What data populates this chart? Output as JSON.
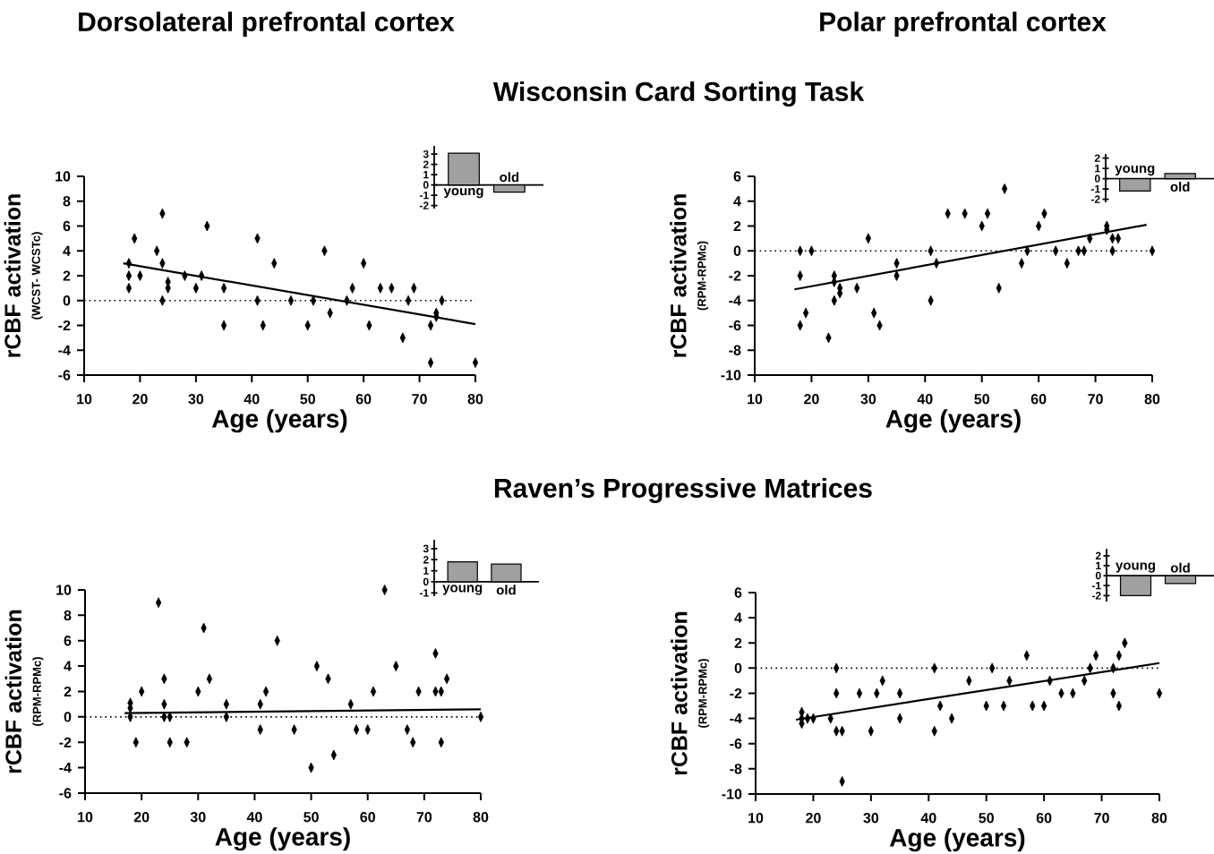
{
  "chart_data": [
    {
      "type": "scatter",
      "title": "Dorsolateral prefrontal cortex",
      "subtitle": "Wisconsin Card Sorting Task",
      "xlabel": "Age (years)",
      "ylabel": "rCBF activation",
      "annotations": [
        "(WCST- WCSTc)"
      ],
      "xlim": [
        10,
        80
      ],
      "ylim": [
        -6,
        10
      ],
      "xticks": [
        10,
        20,
        30,
        40,
        50,
        60,
        70,
        80
      ],
      "yticks": [
        -6,
        -4,
        -2,
        0,
        2,
        4,
        6,
        8,
        10
      ],
      "ref_lines": [
        {
          "axis": "y",
          "value": 0,
          "line_style": "dotted"
        }
      ],
      "series": [
        {
          "type": "scatter",
          "marker": "diamond",
          "color": "#000000",
          "x": [
            18,
            18,
            18,
            19,
            20,
            23,
            24,
            24,
            24,
            25,
            25,
            28,
            30,
            31,
            32,
            35,
            35,
            41,
            41,
            42,
            44,
            47,
            50,
            51,
            53,
            54,
            57,
            58,
            60,
            61,
            63,
            65,
            67,
            68,
            69,
            72,
            72,
            73,
            73,
            74,
            80
          ],
          "values": [
            3,
            2,
            1,
            5,
            2,
            4,
            7,
            3,
            0,
            1,
            1.5,
            2,
            1,
            2,
            6,
            1,
            -2,
            5,
            0,
            -2,
            3,
            0,
            -2,
            0,
            4,
            -1,
            0,
            1,
            3,
            -2,
            1,
            1,
            -3,
            0,
            1,
            -2,
            -5,
            -1,
            -1.3,
            0,
            -5
          ]
        },
        {
          "type": "line",
          "color": "#000000",
          "x": [
            17,
            80
          ],
          "values": [
            3.0,
            -1.9
          ]
        }
      ]
    },
    {
      "type": "bar",
      "categories": [
        "young",
        "old"
      ],
      "values": [
        3.1,
        -0.7
      ],
      "color": "#a0a0a0",
      "ylim": [
        -2.3,
        3.8
      ],
      "yticks": [
        -2,
        -1,
        0,
        1,
        2,
        3
      ]
    },
    {
      "type": "scatter",
      "title": "Polar prefrontal cortex",
      "xlabel": "Age (years)",
      "ylabel": "rCBF activation",
      "annotations": [
        "(RPM-RPMc)"
      ],
      "xlim": [
        10,
        80
      ],
      "ylim": [
        -10,
        6
      ],
      "xticks": [
        10,
        20,
        30,
        40,
        50,
        60,
        70,
        80
      ],
      "yticks": [
        -10,
        -8,
        -6,
        -4,
        -2,
        0,
        2,
        4,
        6
      ],
      "ref_lines": [
        {
          "axis": "y",
          "value": 0,
          "line_style": "dotted"
        }
      ],
      "series": [
        {
          "type": "scatter",
          "marker": "diamond",
          "color": "#000000",
          "x": [
            18,
            18,
            18,
            19,
            20,
            23,
            24,
            24,
            24,
            25,
            25,
            28,
            30,
            31,
            32,
            35,
            35,
            41,
            41,
            42,
            44,
            47,
            50,
            51,
            53,
            54,
            57,
            58,
            60,
            61,
            63,
            65,
            67,
            68,
            69,
            72,
            72,
            73,
            73,
            74,
            80
          ],
          "values": [
            0,
            -2,
            -6,
            -5,
            0,
            -7,
            -2,
            -2.5,
            -4,
            -3,
            -3.4,
            -3,
            1,
            -5,
            -6,
            -1,
            -2,
            0,
            -4,
            -1,
            3,
            3,
            2,
            3,
            -3,
            5,
            -1,
            0,
            2,
            3,
            0,
            -1,
            0,
            0,
            1,
            2,
            1.7,
            1,
            0,
            1,
            0
          ]
        },
        {
          "type": "line",
          "color": "#000000",
          "x": [
            17,
            79
          ],
          "values": [
            -3.1,
            2.1
          ]
        }
      ]
    },
    {
      "type": "bar",
      "categories": [
        "young",
        "old"
      ],
      "values": [
        -1.2,
        0.5
      ],
      "color": "#a0a0a0",
      "ylim": [
        -2.3,
        2.4
      ],
      "yticks": [
        -2,
        -1,
        0,
        1,
        2
      ]
    },
    {
      "type": "scatter",
      "subtitle": "Raven’s Progressive Matrices",
      "xlabel": "Age (years)",
      "ylabel": "rCBF activation",
      "annotations": [
        "(RPM-RPMc)"
      ],
      "xlim": [
        10,
        80
      ],
      "ylim": [
        -6,
        10
      ],
      "xticks": [
        10,
        20,
        30,
        40,
        50,
        60,
        70,
        80
      ],
      "yticks": [
        -6,
        -4,
        -2,
        0,
        2,
        4,
        6,
        8,
        10
      ],
      "ref_lines": [
        {
          "axis": "y",
          "value": 0,
          "line_style": "dotted"
        }
      ],
      "series": [
        {
          "type": "scatter",
          "marker": "diamond",
          "color": "#000000",
          "x": [
            18,
            18,
            18,
            19,
            20,
            23,
            24,
            24,
            24,
            25,
            25,
            28,
            30,
            31,
            32,
            35,
            35,
            41,
            41,
            42,
            44,
            47,
            50,
            51,
            53,
            54,
            57,
            58,
            60,
            61,
            63,
            65,
            67,
            68,
            69,
            72,
            72,
            73,
            73,
            74,
            80
          ],
          "values": [
            1.1,
            0.7,
            0,
            -2,
            2,
            9,
            3,
            1,
            0,
            0,
            -2,
            -2,
            2,
            7,
            3,
            1,
            0,
            1,
            -1,
            2,
            6,
            -1,
            -4,
            4,
            3,
            -3,
            1,
            -1,
            -1,
            2,
            10,
            4,
            -1,
            -2,
            2,
            5,
            2,
            2,
            -2,
            3,
            0
          ]
        },
        {
          "type": "line",
          "color": "#000000",
          "x": [
            17,
            80
          ],
          "values": [
            0.3,
            0.6
          ]
        }
      ]
    },
    {
      "type": "bar",
      "categories": [
        "young",
        "old"
      ],
      "values": [
        1.8,
        1.6
      ],
      "color": "#a0a0a0",
      "ylim": [
        -1.3,
        3.8
      ],
      "yticks": [
        -1,
        0,
        1,
        2,
        3
      ]
    },
    {
      "type": "scatter",
      "xlabel": "Age (years)",
      "ylabel": "rCBF activation",
      "annotations": [
        "(RPM-RPMc)"
      ],
      "xlim": [
        10,
        80
      ],
      "ylim": [
        -10,
        6
      ],
      "xticks": [
        10,
        20,
        30,
        40,
        50,
        60,
        70,
        80
      ],
      "yticks": [
        -10,
        -8,
        -6,
        -4,
        -2,
        0,
        2,
        4,
        6
      ],
      "ref_lines": [
        {
          "axis": "y",
          "value": 0,
          "line_style": "dotted"
        }
      ],
      "series": [
        {
          "type": "scatter",
          "marker": "diamond",
          "color": "#000000",
          "x": [
            18,
            18,
            18,
            19,
            20,
            23,
            24,
            24,
            24,
            25,
            25,
            28,
            30,
            31,
            32,
            35,
            35,
            41,
            41,
            42,
            44,
            47,
            50,
            51,
            53,
            54,
            57,
            58,
            60,
            61,
            63,
            65,
            67,
            68,
            69,
            72,
            72,
            73,
            73,
            74,
            80
          ],
          "values": [
            -3.5,
            -4,
            -4.4,
            -4,
            -4,
            -4,
            0,
            -2,
            -5,
            -5,
            -9,
            -2,
            -5,
            -2,
            -1,
            -2,
            -4,
            0,
            -5,
            -3,
            -4,
            -1,
            -3,
            0,
            -3,
            -1,
            1,
            -3,
            -3,
            -1,
            -2,
            -2,
            -1,
            0,
            1,
            0,
            -2,
            1,
            -3,
            2,
            -2
          ]
        },
        {
          "type": "line",
          "color": "#000000",
          "x": [
            17,
            80
          ],
          "values": [
            -4.1,
            0.4
          ]
        }
      ]
    },
    {
      "type": "bar",
      "categories": [
        "young",
        "old"
      ],
      "values": [
        -2.0,
        -0.8
      ],
      "color": "#a0a0a0",
      "ylim": [
        -2.6,
        2.7
      ],
      "yticks": [
        -2,
        -1,
        0,
        1,
        2
      ]
    }
  ]
}
